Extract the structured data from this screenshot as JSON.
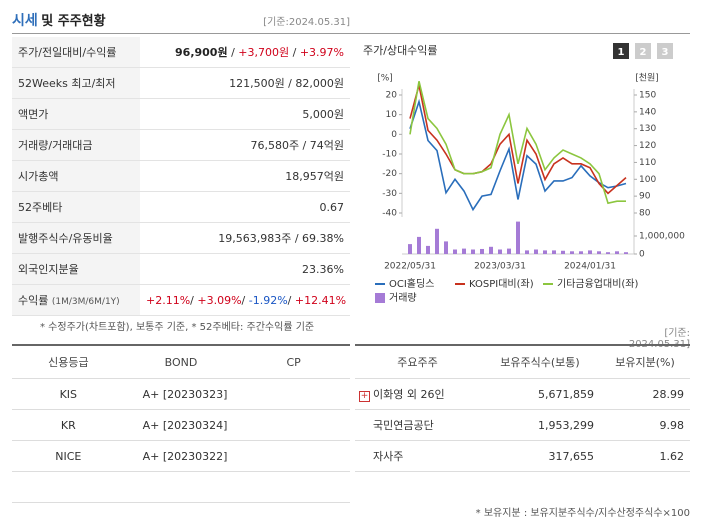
{
  "header": {
    "title": "시세",
    "title_rest": "및 주주현황",
    "date": "[기준:2024.05.31]"
  },
  "quote": {
    "rows": [
      {
        "label": "주가/전일대비/수익률",
        "value": [
          {
            "text": "96,900원",
            "tone": "strong"
          },
          {
            "text": " / "
          },
          {
            "text": "+3,700원",
            "tone": "up"
          },
          {
            "text": " / "
          },
          {
            "text": "+3.97%",
            "tone": "up"
          }
        ]
      },
      {
        "label": "52Weeks 최고/최저",
        "value": [
          {
            "text": "121,500원 / 82,000원"
          }
        ]
      },
      {
        "label": "액면가",
        "value": [
          {
            "text": "5,000원"
          }
        ]
      },
      {
        "label": "거래량/거래대금",
        "value": [
          {
            "text": "76,580주 / 74억원"
          }
        ]
      },
      {
        "label": "시가총액",
        "value": [
          {
            "text": "18,957억원"
          }
        ]
      },
      {
        "label": "52주베타",
        "value": [
          {
            "text": "0.67"
          }
        ]
      },
      {
        "label": "발행주식수/유동비율",
        "value": [
          {
            "text": "19,563,983주 / 69.38%"
          }
        ]
      },
      {
        "label": "외국인지분율",
        "value": [
          {
            "text": "23.36%"
          }
        ]
      },
      {
        "label": "수익률",
        "label_note": "(1M/3M/6M/1Y)",
        "value": [
          {
            "text": "+2.11%",
            "tone": "up"
          },
          {
            "text": "/ "
          },
          {
            "text": "+3.09%",
            "tone": "up"
          },
          {
            "text": "/ "
          },
          {
            "text": "-1.92%",
            "tone": "down"
          },
          {
            "text": "/ "
          },
          {
            "text": "+12.41%",
            "tone": "up"
          }
        ]
      }
    ],
    "note": "* 수정주가(차트포함), 보통주 기준, * 52주베타: 주간수익률 기준"
  },
  "chart": {
    "type": "line",
    "title": "주가/상대수익률",
    "tabs": [
      "1",
      "2",
      "3"
    ],
    "active_tab": 0,
    "ylabel": "[%]",
    "y2label": "[천원]",
    "categories": [
      "2022/05/31",
      null,
      null,
      null,
      null,
      null,
      null,
      null,
      null,
      null,
      "2023/03/31",
      null,
      null,
      null,
      null,
      null,
      null,
      null,
      null,
      null,
      "2024/01/31",
      null,
      null,
      null,
      null
    ],
    "ylim": [
      -40,
      20
    ],
    "yticks": [
      20,
      10,
      0,
      -10,
      -20,
      -30,
      -40
    ],
    "y2lim": [
      80,
      150
    ],
    "y2ticks": [
      150,
      140,
      130,
      120,
      110,
      100,
      90,
      80
    ],
    "volume_lim": [
      0,
      1000000
    ],
    "volume_ticks": [
      {
        "value": 1000000,
        "label": "1,000,000"
      },
      0
    ],
    "series": [
      {
        "name": "OCI홀딩스",
        "color": "#2a6ebb",
        "axis": "y2",
        "values": [
          130,
          146,
          123,
          117,
          92,
          100,
          93,
          82,
          90,
          91,
          105,
          118,
          88,
          114,
          109,
          93,
          99,
          99,
          101,
          108,
          102,
          98,
          95,
          96,
          97.5
        ]
      },
      {
        "name": "KOSPI대비(좌)",
        "color": "#c8321e",
        "axis": "y",
        "values": [
          8,
          25,
          2,
          -3,
          -10,
          -18,
          -20,
          -20,
          -19,
          -15,
          -5,
          0,
          -25,
          -3,
          -10,
          -23,
          -15,
          -12,
          -15,
          -15,
          -17,
          -25,
          -30,
          -26,
          -22
        ]
      },
      {
        "name": "기타금융업대비(좌)",
        "color": "#8cc63f",
        "axis": "y",
        "values": [
          0,
          27,
          8,
          3,
          -5,
          -18,
          -20,
          -20,
          -19,
          -17,
          0,
          10,
          -15,
          3,
          -5,
          -18,
          -12,
          -8,
          -10,
          -12,
          -15,
          -20,
          -35,
          -34,
          -34
        ]
      },
      {
        "name": "거래량",
        "color": "#a57bd6",
        "type": "bar",
        "axis": "volume",
        "values": [
          550000,
          950000,
          450000,
          1400000,
          700000,
          250000,
          300000,
          250000,
          280000,
          400000,
          250000,
          300000,
          1800000,
          200000,
          250000,
          200000,
          200000,
          180000,
          150000,
          150000,
          200000,
          150000,
          100000,
          150000,
          100000
        ]
      }
    ]
  },
  "credit": {
    "header": [
      "신용등급",
      "BOND",
      "CP"
    ],
    "rows": [
      [
        "KIS",
        "A+ [20230323]"
      ],
      [
        "KR",
        "A+ [20230324]"
      ],
      [
        "NICE",
        "A+ [20230322]"
      ]
    ]
  },
  "holders": {
    "date": "[기준: 2024.05.31]",
    "header": [
      "주요주주",
      "보유주식수(보통)",
      "보유지분(%)"
    ],
    "rows": [
      {
        "name": "이화영 외 26인",
        "shares": "5,671,859",
        "pct": "28.99",
        "expandable": true
      },
      {
        "name": "국민연금공단",
        "shares": "1,953,299",
        "pct": "9.98"
      },
      {
        "name": "자사주",
        "shares": "317,655",
        "pct": "1.62"
      }
    ],
    "note": "* 보유지분 : 보유지분주식수/지수산정주식수×100"
  }
}
